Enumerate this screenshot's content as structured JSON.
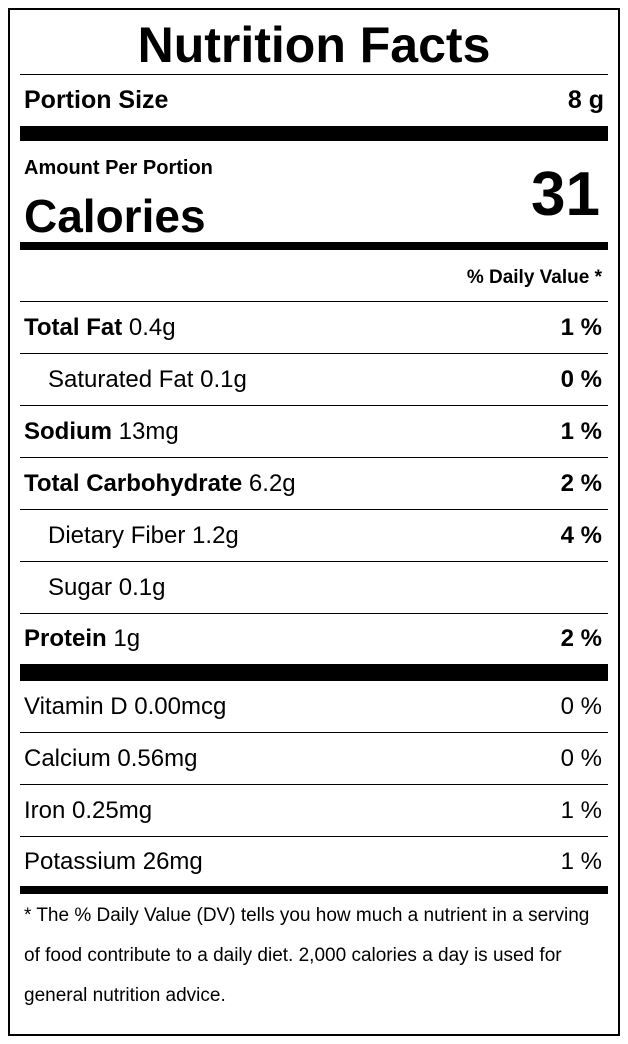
{
  "title": "Nutrition Facts",
  "portion": {
    "label": "Portion Size",
    "value": "8 g"
  },
  "calories": {
    "amount_label": "Amount Per Portion",
    "label": "Calories",
    "value": "31"
  },
  "daily_value_header": "% Daily Value *",
  "nutrients": [
    {
      "name": "Total Fat",
      "amount": "0.4g",
      "dv": "1 %"
    },
    {
      "name": "Saturated Fat",
      "amount": "0.1g",
      "dv": "0 %"
    },
    {
      "name": "Sodium",
      "amount": "13mg",
      "dv": "1 %"
    },
    {
      "name": "Total Carbohydrate",
      "amount": "6.2g",
      "dv": "2 %"
    },
    {
      "name": "Dietary Fiber",
      "amount": "1.2g",
      "dv": "4 %"
    },
    {
      "name": "Sugar",
      "amount": "0.1g"
    },
    {
      "name": "Protein",
      "amount": "1g",
      "dv": "2 %"
    }
  ],
  "vitamins": [
    {
      "name": "Vitamin D",
      "amount": "0.00mcg",
      "dv": "0 %"
    },
    {
      "name": "Calcium",
      "amount": "0.56mg",
      "dv": "0 %"
    },
    {
      "name": "Iron",
      "amount": "0.25mg",
      "dv": "1 %"
    },
    {
      "name": "Potassium",
      "amount": "26mg",
      "dv": "1 %"
    }
  ],
  "footnote": "* The % Daily Value (DV) tells you how much a nutrient in a serving of food contribute to a daily diet. 2,000 calories a day is used for general nutrition advice."
}
